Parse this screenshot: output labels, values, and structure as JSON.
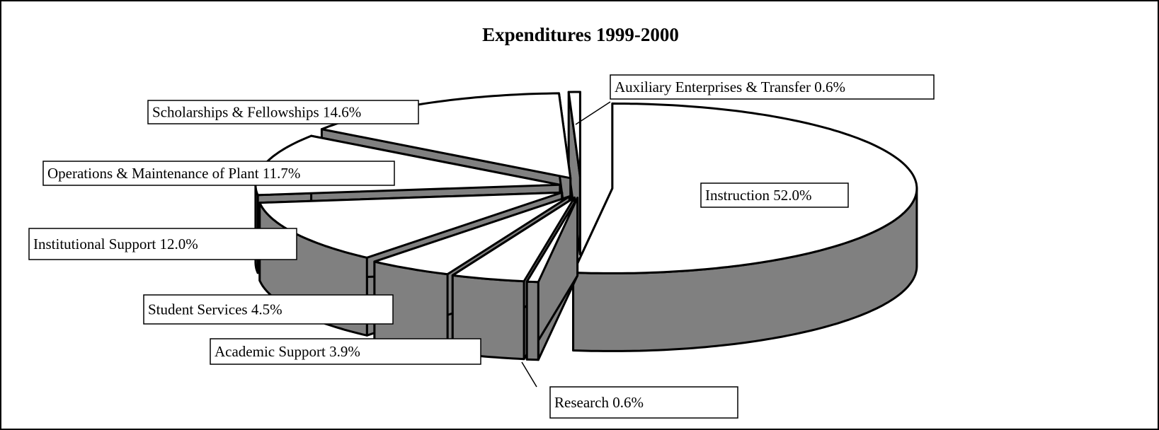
{
  "chart_data": {
    "type": "pie3d",
    "title": "Expenditures 1999-2000",
    "categories": [
      "Instruction",
      "Research",
      "Academic Support",
      "Student Services",
      "Institutional Support",
      "Operations & Maintenance of Plant",
      "Scholarships & Fellowships",
      "Auxiliary Enterprises & Transfer"
    ],
    "values": [
      52.0,
      0.6,
      3.9,
      4.5,
      12.0,
      11.7,
      14.6,
      0.6
    ],
    "value_labels": [
      "52.0%",
      "0.6%",
      "3.9%",
      "4.5%",
      "12.0%",
      "11.7%",
      "14.6%",
      "0.6%"
    ],
    "color": "#ffffff",
    "side_color": "#808080"
  }
}
